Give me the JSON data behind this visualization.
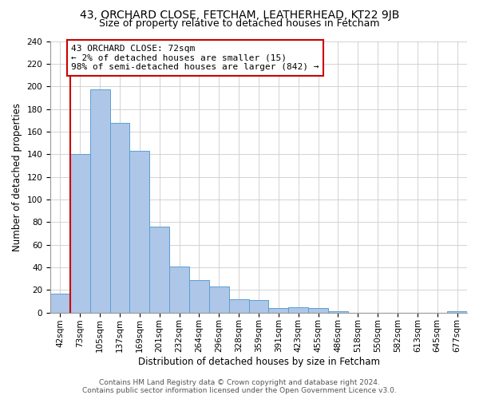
{
  "title": "43, ORCHARD CLOSE, FETCHAM, LEATHERHEAD, KT22 9JB",
  "subtitle": "Size of property relative to detached houses in Fetcham",
  "xlabel": "Distribution of detached houses by size in Fetcham",
  "ylabel": "Number of detached properties",
  "bar_labels": [
    "42sqm",
    "73sqm",
    "105sqm",
    "137sqm",
    "169sqm",
    "201sqm",
    "232sqm",
    "264sqm",
    "296sqm",
    "328sqm",
    "359sqm",
    "391sqm",
    "423sqm",
    "455sqm",
    "486sqm",
    "518sqm",
    "550sqm",
    "582sqm",
    "613sqm",
    "645sqm",
    "677sqm"
  ],
  "bar_heights": [
    17,
    140,
    197,
    168,
    143,
    76,
    41,
    29,
    23,
    12,
    11,
    4,
    5,
    4,
    1,
    0,
    0,
    0,
    0,
    0,
    1
  ],
  "bar_color": "#aec6e8",
  "bar_edge_color": "#5a9fd4",
  "vline_color": "#cc0000",
  "annotation_line1": "43 ORCHARD CLOSE: 72sqm",
  "annotation_line2": "← 2% of detached houses are smaller (15)",
  "annotation_line3": "98% of semi-detached houses are larger (842) →",
  "annotation_box_color": "#ffffff",
  "annotation_border_color": "#cc0000",
  "ylim": [
    0,
    240
  ],
  "yticks": [
    0,
    20,
    40,
    60,
    80,
    100,
    120,
    140,
    160,
    180,
    200,
    220,
    240
  ],
  "footer1": "Contains HM Land Registry data © Crown copyright and database right 2024.",
  "footer2": "Contains public sector information licensed under the Open Government Licence v3.0.",
  "background_color": "#ffffff",
  "grid_color": "#cccccc",
  "title_fontsize": 10,
  "subtitle_fontsize": 9,
  "axis_label_fontsize": 8.5,
  "tick_fontsize": 7.5,
  "annotation_fontsize": 8,
  "footer_fontsize": 6.5
}
